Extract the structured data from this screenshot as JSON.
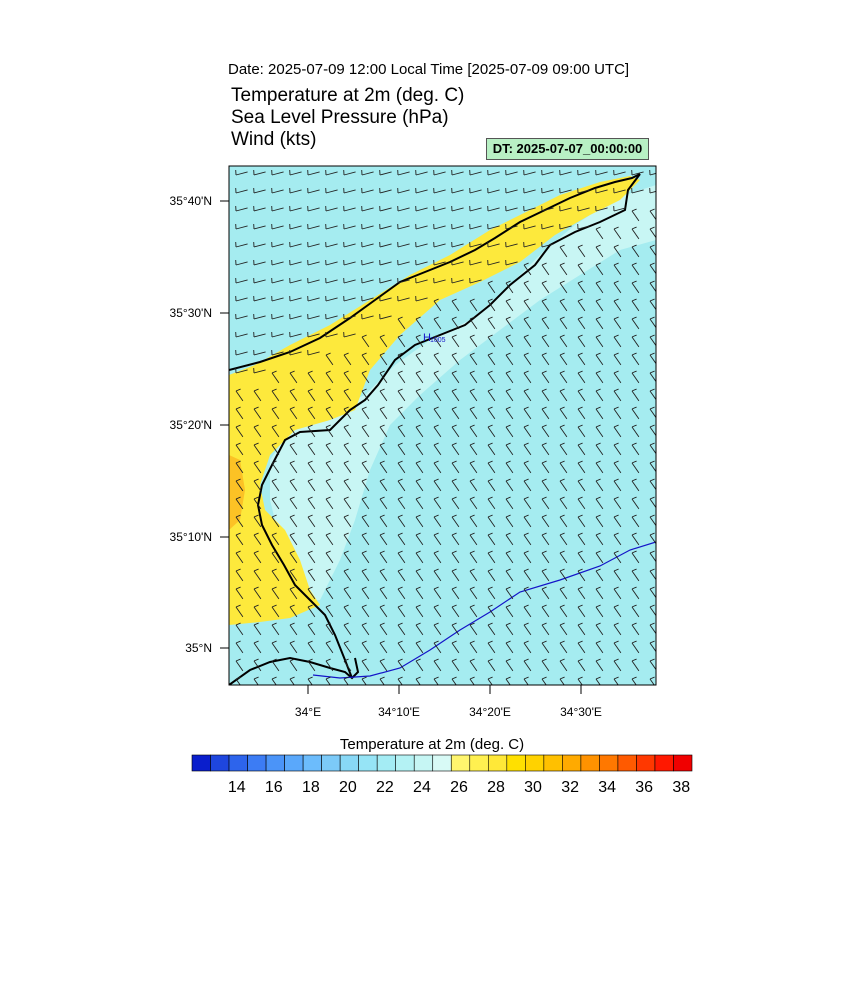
{
  "header": {
    "date_line": "Date: 2025-07-09  12:00 Local Time [2025-07-09  09:00 UTC]",
    "title_lines": [
      "Temperature at 2m   (deg. C)",
      "Sea Level Pressure   (hPa)",
      "Wind   (kts)"
    ],
    "dt_label": "DT: 2025-07-07_00:00:00"
  },
  "map": {
    "lat_ticks": [
      "35°40'N",
      "35°30'N",
      "35°20'N",
      "35°10'N",
      "35°N"
    ],
    "lon_ticks": [
      "34°E",
      "34°10'E",
      "34°20'E",
      "34°30'E"
    ],
    "pressure_high_marker": "H",
    "pressure_high_value": "1005",
    "colors": {
      "sea": "#a5ecf0",
      "land_inner": "#c8f6f4",
      "warm_band": "#fde93c",
      "hot_spot": "#fcc225",
      "coastline": "#000000",
      "isobar": "#1414c8"
    }
  },
  "colorbar": {
    "title": "Temperature at 2m  (deg. C)",
    "labels": [
      "14",
      "16",
      "18",
      "20",
      "22",
      "24",
      "26",
      "28",
      "30",
      "32",
      "34",
      "36",
      "38"
    ],
    "colors": [
      "#0a1ecc",
      "#1e46de",
      "#2d64ec",
      "#3c7cf4",
      "#4b94f8",
      "#5aa8fb",
      "#6cbcfc",
      "#7ccaf8",
      "#88d8f6",
      "#96e4f6",
      "#a4ecf4",
      "#b4f2f4",
      "#c6f6f4",
      "#d8faf6",
      "#fff56e",
      "#fff050",
      "#ffe838",
      "#ffe000",
      "#ffd200",
      "#ffc000",
      "#ffaa00",
      "#ff9200",
      "#ff7800",
      "#ff5a00",
      "#ff3800",
      "#ff1800",
      "#f00000"
    ]
  }
}
